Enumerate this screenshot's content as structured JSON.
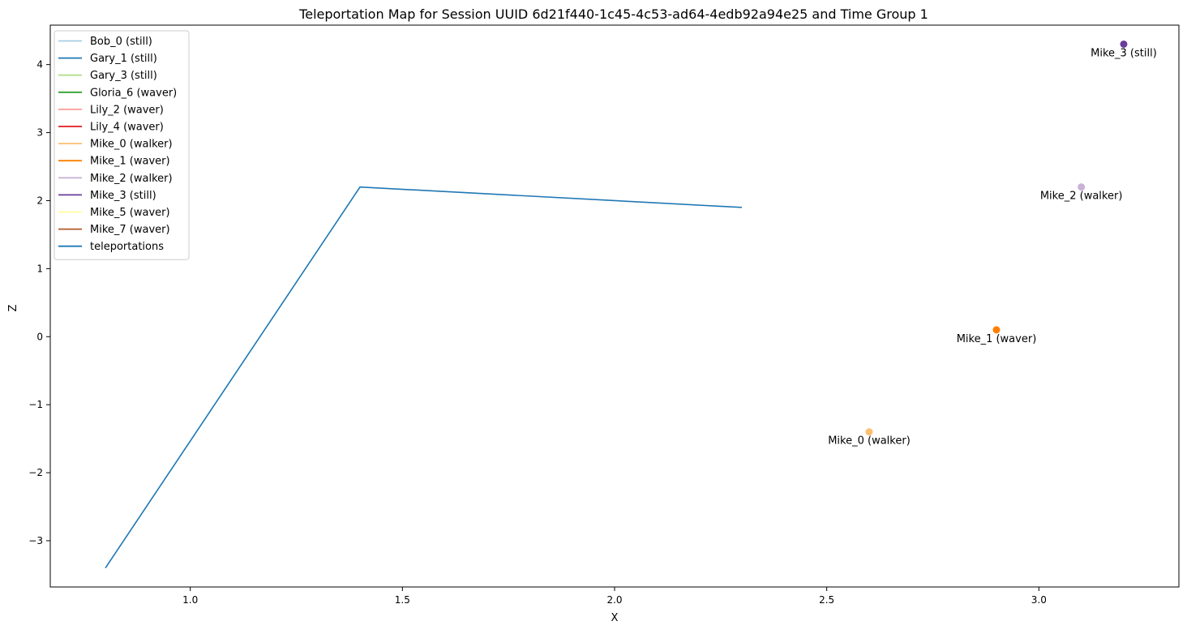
{
  "chart_data": {
    "type": "scatter",
    "title": "Teleportation Map for Session UUID 6d21f440-1c45-4c53-ad64-4edb92a94e25 and Time Group 1",
    "xlabel": "X",
    "ylabel": "Z",
    "xlim": [
      0.67,
      3.33
    ],
    "ylim": [
      -3.68,
      4.58
    ],
    "x_ticks": [
      "1.0",
      "1.5",
      "2.0",
      "2.5",
      "3.0"
    ],
    "x_tick_values": [
      1.0,
      1.5,
      2.0,
      2.5,
      3.0
    ],
    "y_ticks": [
      "−3",
      "−2",
      "−1",
      "0",
      "1",
      "2",
      "3",
      "4"
    ],
    "y_tick_values": [
      -3,
      -2,
      -1,
      0,
      1,
      2,
      3,
      4
    ],
    "grid": false,
    "legend_position": "top-left",
    "legend": [
      {
        "label": "Bob_0 (still)",
        "color": "#a6cee3"
      },
      {
        "label": "Gary_1 (still)",
        "color": "#1f78b4"
      },
      {
        "label": "Gary_3 (still)",
        "color": "#b2df8a"
      },
      {
        "label": "Gloria_6 (waver)",
        "color": "#33a02c"
      },
      {
        "label": "Lily_2 (waver)",
        "color": "#fb9a99"
      },
      {
        "label": "Lily_4 (waver)",
        "color": "#e31a1c"
      },
      {
        "label": "Mike_0 (walker)",
        "color": "#fdbf6f"
      },
      {
        "label": "Mike_1 (waver)",
        "color": "#ff7f00"
      },
      {
        "label": "Mike_2 (walker)",
        "color": "#cab2d6"
      },
      {
        "label": "Mike_3 (still)",
        "color": "#6a3d9a"
      },
      {
        "label": "Mike_5 (waver)",
        "color": "#ffff99"
      },
      {
        "label": "Mike_7 (waver)",
        "color": "#b15928"
      },
      {
        "label": "teleportations",
        "color": "#1f77b4"
      }
    ],
    "teleportations": {
      "color": "#1f77b4",
      "x": [
        0.8,
        1.4,
        2.3
      ],
      "y": [
        -3.4,
        2.2,
        1.9
      ]
    },
    "points": [
      {
        "label": "Mike_3 (still)",
        "x": 3.2,
        "y": 4.3,
        "color": "#6a3d9a"
      },
      {
        "label": "Mike_2 (walker)",
        "x": 3.1,
        "y": 2.2,
        "color": "#cab2d6"
      },
      {
        "label": "Mike_1 (waver)",
        "x": 2.9,
        "y": 0.1,
        "color": "#ff7f00"
      },
      {
        "label": "Mike_0 (walker)",
        "x": 2.6,
        "y": -1.4,
        "color": "#fdbf6f"
      }
    ]
  }
}
